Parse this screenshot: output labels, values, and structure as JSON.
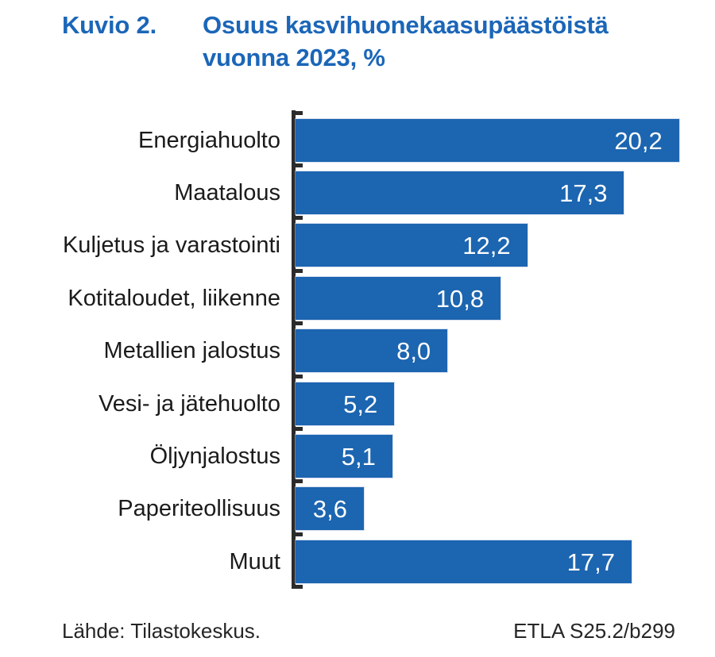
{
  "title": {
    "figure_number": "Kuvio 2.",
    "line1": "Osuus kasvihuonekaasupäästöistä",
    "line2": "vuonna 2023, %"
  },
  "chart_data": {
    "type": "bar",
    "orientation": "horizontal",
    "title": "Osuus kasvihuonekaasupäästöistä vuonna 2023, %",
    "categories": [
      "Energiahuolto",
      "Maatalous",
      "Kuljetus ja varastointi",
      "Kotitaloudet, liikenne",
      "Metallien jalostus",
      "Vesi- ja jätehuolto",
      "Öljynjalostus",
      "Paperiteollisuus",
      "Muut"
    ],
    "values": [
      20.2,
      17.3,
      12.2,
      10.8,
      8.0,
      5.2,
      5.1,
      3.6,
      17.7
    ],
    "value_labels": [
      "20,2",
      "17,3",
      "12,2",
      "10,8",
      "8,0",
      "5,2",
      "5,1",
      "3,6",
      "17,7"
    ],
    "unit": "%",
    "xlim": [
      0,
      20.5
    ],
    "grid": false,
    "legend": false,
    "bar_color": "#1C65B0",
    "value_label_color": "#FFFFFF",
    "axis_color": "#2B2B2B"
  },
  "footer": {
    "source": "Lähde: Tilastokeskus.",
    "reference": "ETLA S25.2/b299"
  },
  "colors": {
    "title_blue": "#1B66B8",
    "bar_blue": "#1C65B0",
    "text_dark": "#1B1B1B",
    "axis_black": "#2B2B2B",
    "background": "#FFFFFF"
  }
}
